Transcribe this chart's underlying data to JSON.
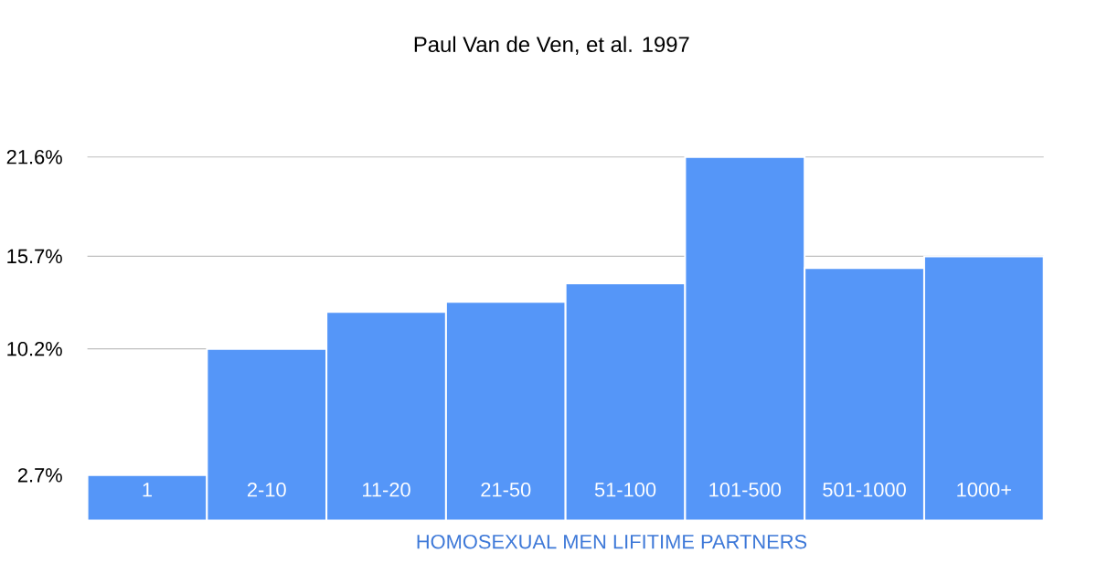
{
  "chart_data": {
    "type": "bar",
    "title": "Paul Van de Ven, et al. 1997",
    "xlabel": "HOMOSEXUAL MEN LIFITIME PARTNERS",
    "categories": [
      "1",
      "2-10",
      "11-20",
      "21-50",
      "51-100",
      "101-500",
      "501-1000",
      "1000+"
    ],
    "values": [
      2.7,
      10.2,
      12.4,
      13.0,
      14.1,
      21.6,
      15.0,
      15.7
    ],
    "color": "#5596f8",
    "ylim": [
      0,
      21.6
    ],
    "yticks": [
      {
        "value": 2.7,
        "label": "2.7%"
      },
      {
        "value": 10.2,
        "label": "10.2%"
      },
      {
        "value": 15.7,
        "label": "15.7%"
      },
      {
        "value": 21.6,
        "label": "21.6%"
      }
    ],
    "grid": "y"
  }
}
